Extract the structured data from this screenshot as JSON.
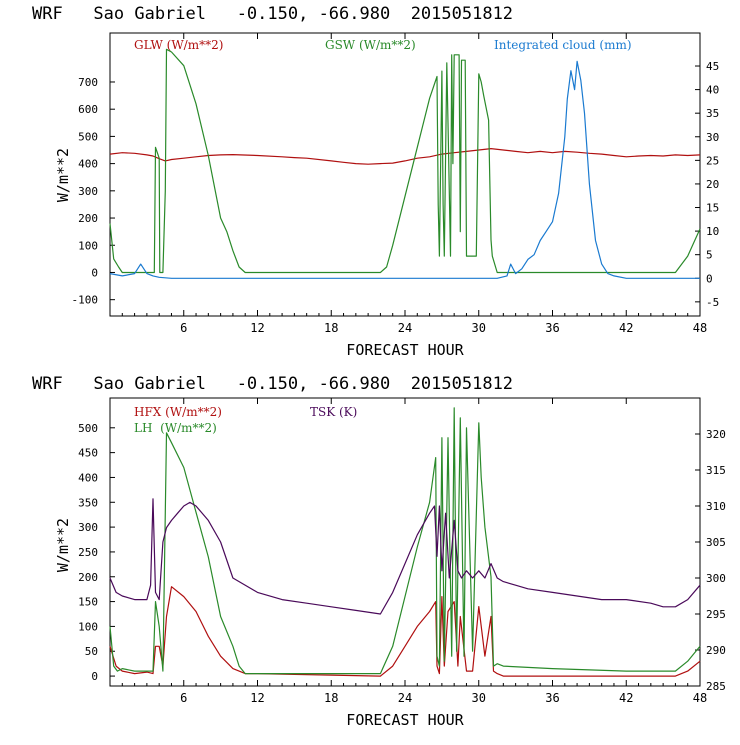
{
  "chart_data": [
    {
      "type": "line",
      "title": "WRF   Sao Gabriel   -0.150, -66.980  2015051812",
      "xlabel": "FORECAST HOUR",
      "ylabel": "W/m**2",
      "xlim": [
        0,
        48
      ],
      "x_ticks": [
        "6",
        "12",
        "18",
        "24",
        "30",
        "36",
        "42",
        "48"
      ],
      "ylim": [
        -160,
        880
      ],
      "y_ticks": [
        "-100",
        "0",
        "100",
        "200",
        "300",
        "400",
        "500",
        "600",
        "700"
      ],
      "y2lim": [
        -8,
        52
      ],
      "y2_ticks": [
        "-5",
        "0",
        "5",
        "10",
        "15",
        "20",
        "25",
        "30",
        "35",
        "40",
        "45"
      ],
      "series": [
        {
          "name": "GLW (W/m**2)",
          "axis": "left",
          "color": "#b01010",
          "x": [
            0,
            1,
            2,
            3,
            3.5,
            4,
            4.5,
            5,
            6,
            7,
            8,
            9,
            10,
            12,
            14,
            15,
            16,
            18,
            19,
            20,
            21,
            22,
            23,
            24,
            25,
            26,
            27,
            28,
            29,
            30,
            31,
            32,
            33,
            34,
            35,
            36,
            37,
            38,
            39,
            40,
            41,
            42,
            43,
            44,
            45,
            46,
            47,
            48
          ],
          "y": [
            435,
            440,
            438,
            432,
            428,
            418,
            410,
            415,
            420,
            425,
            430,
            432,
            433,
            430,
            425,
            422,
            420,
            410,
            405,
            400,
            398,
            400,
            402,
            410,
            420,
            425,
            435,
            440,
            445,
            450,
            455,
            450,
            445,
            440,
            445,
            440,
            445,
            442,
            438,
            435,
            430,
            425,
            428,
            430,
            428,
            432,
            430,
            432
          ]
        },
        {
          "name": "GSW (W/m**2)",
          "axis": "left",
          "color": "#2a8a2a",
          "x": [
            0,
            0.3,
            0.7,
            1,
            2,
            3,
            3.6,
            3.7,
            4,
            4.05,
            4.3,
            4.5,
            4.6,
            5,
            6,
            7,
            8,
            9,
            9.5,
            10,
            10.5,
            11,
            12,
            18,
            22,
            22.5,
            23,
            24,
            25,
            26,
            26.6,
            26.7,
            26.8,
            27.0,
            27.1,
            27.2,
            27.4,
            27.5,
            27.7,
            27.8,
            27.9,
            28.0,
            28.4,
            28.5,
            28.6,
            28.9,
            29.0,
            29.5,
            29.8,
            30.0,
            30.2,
            30.4,
            30.8,
            31.0,
            31.1,
            31.5,
            32,
            46,
            47,
            48
          ],
          "y": [
            180,
            50,
            20,
            0,
            0,
            0,
            0,
            460,
            420,
            0,
            0,
            300,
            820,
            810,
            760,
            620,
            430,
            200,
            150,
            80,
            20,
            0,
            0,
            0,
            0,
            20,
            100,
            280,
            460,
            640,
            720,
            250,
            60,
            740,
            250,
            60,
            770,
            550,
            60,
            800,
            400,
            800,
            800,
            150,
            780,
            780,
            60,
            60,
            60,
            730,
            700,
            650,
            560,
            120,
            60,
            0,
            0,
            0,
            60,
            160
          ]
        },
        {
          "name": "Integrated cloud (mm)",
          "axis": "right",
          "color": "#1a7ad0",
          "x": [
            0,
            1,
            2,
            2.5,
            3,
            3.5,
            4,
            5,
            10,
            20,
            30,
            31.5,
            32.3,
            32.6,
            33,
            33.5,
            34,
            34.5,
            35,
            35.5,
            36,
            36.5,
            37,
            37.2,
            37.5,
            37.8,
            38,
            38.3,
            38.6,
            39,
            39.5,
            40,
            40.5,
            41,
            42,
            48
          ],
          "y": [
            1,
            0.5,
            1,
            3,
            1,
            0.5,
            0.2,
            0,
            0,
            0,
            0,
            0,
            0.5,
            3,
            1,
            2,
            4,
            5,
            8,
            10,
            12,
            18,
            30,
            38,
            44,
            40,
            46,
            42,
            35,
            20,
            8,
            3,
            1,
            0.5,
            0,
            0
          ]
        }
      ]
    },
    {
      "type": "line",
      "title": "WRF   Sao Gabriel   -0.150, -66.980  2015051812",
      "xlabel": "FORECAST HOUR",
      "ylabel": "W/m**2",
      "xlim": [
        0,
        48
      ],
      "x_ticks": [
        "6",
        "12",
        "18",
        "24",
        "30",
        "36",
        "42",
        "48"
      ],
      "ylim": [
        -20,
        560
      ],
      "y_ticks": [
        "0",
        "50",
        "100",
        "150",
        "200",
        "250",
        "300",
        "350",
        "400",
        "450",
        "500"
      ],
      "y2lim": [
        285,
        325
      ],
      "y2_ticks": [
        "285",
        "290",
        "295",
        "300",
        "305",
        "310",
        "315",
        "320"
      ],
      "series": [
        {
          "name": "HFX (W/m**2)",
          "axis": "left",
          "color": "#b01010",
          "x": [
            0,
            0.5,
            1,
            2,
            3,
            3.5,
            3.7,
            4,
            4.3,
            4.6,
            5,
            6,
            7,
            8,
            9,
            10,
            11,
            12,
            18,
            22,
            23,
            24,
            25,
            26,
            26.5,
            26.6,
            26.8,
            27,
            27.2,
            27.5,
            28,
            28.3,
            28.5,
            29,
            29.5,
            30,
            30.5,
            31,
            31.2,
            31.5,
            32,
            36,
            42,
            46,
            47,
            48
          ],
          "y": [
            60,
            20,
            10,
            5,
            8,
            5,
            60,
            60,
            20,
            120,
            180,
            160,
            130,
            80,
            40,
            15,
            5,
            5,
            2,
            0,
            20,
            60,
            100,
            130,
            150,
            20,
            5,
            160,
            20,
            130,
            150,
            20,
            120,
            10,
            10,
            140,
            40,
            120,
            10,
            5,
            0,
            0,
            0,
            0,
            10,
            30
          ]
        },
        {
          "name": "LH  (W/m**2)",
          "axis": "left",
          "color": "#2a8a2a",
          "x": [
            0,
            0.3,
            0.6,
            1,
            2,
            3,
            3.5,
            3.7,
            4,
            4.3,
            4.6,
            5,
            6,
            7,
            8,
            9,
            10,
            10.5,
            11,
            12,
            18,
            22,
            23,
            24,
            25,
            26,
            26.5,
            26.6,
            26.8,
            27,
            27.2,
            27.5,
            27.8,
            28,
            28.2,
            28.5,
            28.8,
            29,
            29.5,
            30,
            30.2,
            30.5,
            31,
            31.2,
            31.5,
            32,
            36,
            42,
            46,
            47,
            48
          ],
          "y": [
            100,
            20,
            10,
            15,
            10,
            10,
            10,
            150,
            100,
            10,
            490,
            470,
            420,
            330,
            240,
            120,
            60,
            20,
            5,
            5,
            5,
            5,
            60,
            160,
            260,
            350,
            440,
            40,
            20,
            480,
            30,
            480,
            40,
            540,
            50,
            520,
            40,
            500,
            50,
            510,
            400,
            300,
            200,
            20,
            25,
            20,
            15,
            10,
            10,
            30,
            60
          ]
        },
        {
          "name": "TSK (K)",
          "axis": "right",
          "color": "#4a0a5a",
          "x": [
            0,
            0.5,
            1,
            2,
            3,
            3.3,
            3.5,
            3.7,
            4,
            4.3,
            4.6,
            5,
            5.5,
            6,
            6.5,
            7,
            8,
            9,
            10,
            12,
            14,
            16,
            18,
            20,
            22,
            23,
            24,
            25,
            26,
            26.4,
            26.6,
            26.8,
            27,
            27.3,
            27.6,
            28,
            28.3,
            28.6,
            29,
            29.5,
            30,
            30.5,
            31,
            31.5,
            32,
            33,
            34,
            36,
            38,
            40,
            42,
            44,
            45,
            46,
            47,
            48
          ],
          "y": [
            300,
            298,
            297.5,
            297,
            297,
            299,
            311,
            298,
            297,
            305,
            307,
            308,
            309,
            310,
            310.5,
            310,
            308,
            305,
            300,
            298,
            297,
            296.5,
            296,
            295.5,
            295,
            298,
            302,
            306,
            309,
            310,
            303,
            310,
            301,
            309,
            300,
            308,
            301,
            300,
            301,
            300,
            301,
            300,
            302,
            300,
            299.5,
            299,
            298.5,
            298,
            297.5,
            297,
            297,
            296.5,
            296,
            296,
            297,
            299
          ]
        }
      ]
    }
  ]
}
